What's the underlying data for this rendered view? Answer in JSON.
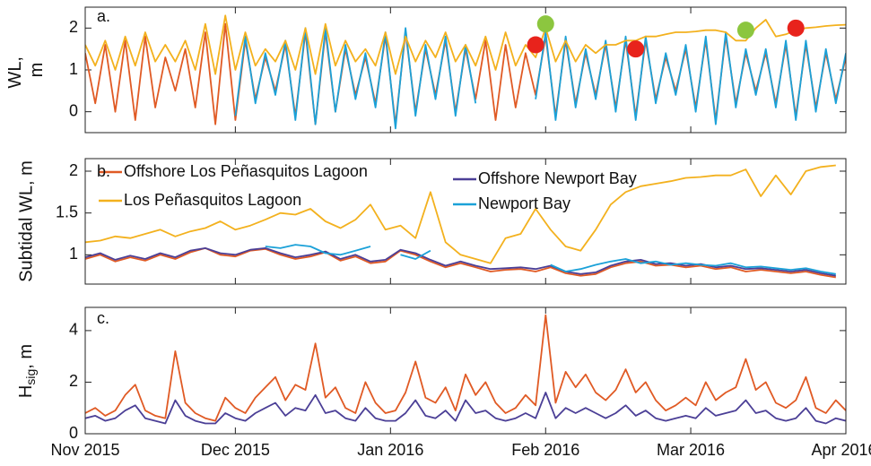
{
  "chart_data": [
    {
      "type": "line",
      "panel_label": "a.",
      "ylabel": [
        "WL,",
        "m"
      ],
      "xlim": [
        0,
        152
      ],
      "ylim": [
        -0.5,
        2.5
      ],
      "yticks": [
        0,
        1,
        2
      ],
      "x": [
        0,
        2,
        4,
        6,
        8,
        10,
        12,
        14,
        16,
        18,
        20,
        22,
        24,
        26,
        28,
        30,
        32,
        34,
        36,
        38,
        40,
        42,
        44,
        46,
        48,
        50,
        52,
        54,
        56,
        58,
        60,
        62,
        64,
        66,
        68,
        70,
        72,
        74,
        76,
        78,
        80,
        82,
        84,
        86,
        88,
        90,
        92,
        94,
        96,
        98,
        100,
        102,
        104,
        106,
        108,
        110,
        112,
        114,
        116,
        118,
        120,
        122,
        124,
        126,
        128,
        130,
        132,
        134,
        136,
        138,
        140,
        142,
        144,
        146,
        148,
        150,
        152
      ],
      "series": [
        {
          "color": "#e05a24",
          "values": [
            1.4,
            0.2,
            1.6,
            0.0,
            1.7,
            -0.2,
            1.8,
            0.1,
            1.3,
            0.5,
            1.5,
            0.1,
            1.9,
            -0.3,
            2.1,
            -0.2,
            1.7,
            0.3,
            1.3,
            0.5,
            1.6,
            -0.1,
            1.9,
            -0.3,
            1.9,
            0.0,
            1.5,
            0.4,
            1.3,
            0.2,
            1.8,
            -0.3,
            1.9,
            0.0,
            1.5,
            0.4,
            1.7,
            0.0,
            1.5,
            0.3,
            1.7,
            -0.2,
            1.6,
            0.1,
            1.4,
            0.4,
            1.8,
            -0.1,
            1.7,
            0.2,
            1.4,
            0.4,
            1.6,
            0.1,
            1.7,
            -0.1,
            1.7,
            0.3,
            1.3,
            0.5,
            1.5,
            0.1,
            1.7,
            -0.2,
            1.8,
            0.2,
            1.4,
            0.5,
            1.4,
            0.2,
            1.6,
            -0.1,
            1.6,
            0.1,
            1.4,
            0.3,
            1.3
          ]
        },
        {
          "color": "#1ba1d8",
          "values": [
            null,
            null,
            null,
            null,
            null,
            null,
            null,
            null,
            null,
            null,
            null,
            null,
            null,
            null,
            null,
            -0.1,
            1.8,
            0.2,
            1.4,
            0.4,
            1.7,
            -0.2,
            2.0,
            -0.3,
            2.0,
            0.0,
            1.6,
            0.3,
            1.4,
            0.1,
            1.9,
            -0.4,
            2.0,
            -0.1,
            1.6,
            0.3,
            1.8,
            -0.1,
            1.6,
            0.2,
            null,
            null,
            null,
            null,
            null,
            0.3,
            1.9,
            -0.2,
            1.8,
            0.1,
            1.5,
            0.3,
            1.7,
            0.0,
            1.8,
            -0.2,
            1.8,
            0.2,
            1.4,
            0.4,
            1.6,
            0.0,
            1.8,
            -0.3,
            1.9,
            0.1,
            1.5,
            0.4,
            1.5,
            0.1,
            1.7,
            -0.2,
            1.7,
            0.0,
            1.5,
            0.2,
            1.4
          ]
        },
        {
          "color": "#f3b11e",
          "values": [
            1.6,
            1.1,
            1.7,
            1.0,
            1.8,
            1.1,
            1.9,
            1.2,
            1.6,
            1.2,
            1.7,
            1.0,
            2.1,
            0.9,
            2.3,
            1.0,
            1.9,
            1.1,
            1.5,
            1.2,
            1.7,
            1.0,
            2.0,
            0.9,
            2.1,
            1.1,
            1.7,
            1.2,
            1.5,
            1.1,
            1.9,
            0.9,
            1.8,
            1.2,
            1.7,
            1.3,
            1.9,
            1.2,
            1.6,
            1.1,
            1.8,
            1.0,
            1.9,
            1.1,
            1.6,
            1.3,
            2.0,
            1.2,
            1.7,
            1.2,
            1.6,
            1.4,
            1.6,
            1.6,
            1.7,
            1.7,
            1.8,
            1.8,
            1.85,
            1.9,
            1.9,
            1.92,
            1.95,
            1.95,
            1.9,
            1.7,
            1.7,
            2.0,
            2.2,
            1.8,
            1.85,
            1.95,
            2.0,
            2.02,
            2.05,
            2.07,
            2.08
          ]
        }
      ],
      "markers": [
        {
          "color": "#e8231c",
          "x": [
            90,
            110,
            142
          ],
          "values": [
            1.6,
            1.5,
            2.0
          ]
        },
        {
          "color": "#8cc63f",
          "x": [
            92,
            132
          ],
          "values": [
            2.1,
            1.95
          ]
        }
      ]
    },
    {
      "type": "line",
      "panel_label": "b.",
      "ylabel": "Subtidal WL, m",
      "xlim": [
        0,
        152
      ],
      "ylim": [
        0.65,
        2.15
      ],
      "yticks": [
        1,
        1.5,
        2
      ],
      "x": [
        0,
        3,
        6,
        9,
        12,
        15,
        18,
        21,
        24,
        27,
        30,
        33,
        36,
        39,
        42,
        45,
        48,
        51,
        54,
        57,
        60,
        63,
        66,
        69,
        72,
        75,
        78,
        81,
        84,
        87,
        90,
        93,
        96,
        99,
        102,
        105,
        108,
        111,
        114,
        117,
        120,
        123,
        126,
        129,
        132,
        135,
        138,
        141,
        144,
        147,
        150
      ],
      "series": [
        {
          "name": "Offshore Los Peñasquitos Lagoon",
          "color": "#e05a24",
          "values": [
            0.95,
            1.0,
            0.92,
            0.97,
            0.93,
            1.0,
            0.95,
            1.03,
            1.08,
            1.0,
            0.98,
            1.05,
            1.07,
            1.0,
            0.95,
            0.98,
            1.03,
            0.93,
            0.98,
            0.9,
            0.92,
            1.05,
            1.0,
            0.92,
            0.85,
            0.9,
            0.85,
            0.8,
            0.82,
            0.83,
            0.8,
            0.85,
            0.78,
            0.75,
            0.77,
            0.85,
            0.9,
            0.92,
            0.87,
            0.88,
            0.85,
            0.87,
            0.83,
            0.85,
            0.8,
            0.82,
            0.8,
            0.78,
            0.8,
            0.76,
            0.73
          ]
        },
        {
          "name": "Los Peñasquitos Lagoon",
          "color": "#f3b11e",
          "values": [
            1.15,
            1.17,
            1.22,
            1.2,
            1.25,
            1.3,
            1.22,
            1.28,
            1.32,
            1.4,
            1.3,
            1.35,
            1.42,
            1.5,
            1.48,
            1.55,
            1.4,
            1.32,
            1.42,
            1.6,
            1.3,
            1.35,
            1.2,
            1.75,
            1.15,
            1.0,
            0.95,
            0.9,
            1.2,
            1.25,
            1.55,
            1.3,
            1.1,
            1.05,
            1.3,
            1.6,
            1.75,
            1.82,
            1.85,
            1.88,
            1.92,
            1.93,
            1.95,
            1.95,
            2.02,
            1.7,
            1.95,
            1.72,
            2.0,
            2.05,
            2.07
          ]
        },
        {
          "name": "Offshore Newport Bay",
          "color": "#4b3f96",
          "values": [
            0.97,
            1.02,
            0.94,
            0.99,
            0.95,
            1.02,
            0.97,
            1.05,
            1.08,
            1.02,
            1.0,
            1.06,
            1.08,
            1.02,
            0.97,
            1.0,
            1.04,
            0.95,
            1.0,
            0.92,
            0.94,
            1.06,
            1.02,
            0.94,
            0.87,
            0.92,
            0.87,
            0.83,
            0.84,
            0.85,
            0.83,
            0.87,
            0.8,
            0.77,
            0.79,
            0.87,
            0.92,
            0.94,
            0.89,
            0.9,
            0.87,
            0.89,
            0.85,
            0.87,
            0.83,
            0.84,
            0.82,
            0.8,
            0.82,
            0.78,
            0.75
          ]
        },
        {
          "name": "Newport Bay",
          "color": "#1ba1d8",
          "values": [
            null,
            null,
            null,
            null,
            null,
            null,
            null,
            null,
            null,
            null,
            null,
            null,
            1.1,
            1.08,
            1.12,
            1.1,
            1.02,
            1.0,
            1.05,
            1.1,
            null,
            1.0,
            0.95,
            1.05,
            null,
            null,
            null,
            null,
            null,
            null,
            null,
            0.88,
            0.8,
            0.83,
            0.88,
            0.92,
            0.95,
            0.9,
            0.92,
            0.88,
            0.9,
            0.88,
            0.87,
            0.9,
            0.85,
            0.86,
            0.84,
            0.82,
            0.84,
            0.8,
            0.77
          ]
        }
      ]
    },
    {
      "type": "line",
      "panel_label": "c.",
      "ylabel": {
        "main": "H",
        "sub": "sig",
        "rest": ", m"
      },
      "xlim": [
        0,
        152
      ],
      "ylim": [
        0,
        4.9
      ],
      "yticks": [
        0,
        2,
        4
      ],
      "xticks": [
        {
          "value": 0,
          "label": "Nov 2015"
        },
        {
          "value": 30,
          "label": "Dec 2015"
        },
        {
          "value": 61,
          "label": "Jan 2016"
        },
        {
          "value": 92,
          "label": "Feb 2016"
        },
        {
          "value": 121,
          "label": "Mar 2016"
        },
        {
          "value": 152,
          "label": "Apr 2016"
        }
      ],
      "x": [
        0,
        2,
        4,
        6,
        8,
        10,
        12,
        14,
        16,
        18,
        20,
        22,
        24,
        26,
        28,
        30,
        32,
        34,
        36,
        38,
        40,
        42,
        44,
        46,
        48,
        50,
        52,
        54,
        56,
        58,
        60,
        62,
        64,
        66,
        68,
        70,
        72,
        74,
        76,
        78,
        80,
        82,
        84,
        86,
        88,
        90,
        92,
        94,
        96,
        98,
        100,
        102,
        104,
        106,
        108,
        110,
        112,
        114,
        116,
        118,
        120,
        122,
        124,
        126,
        128,
        130,
        132,
        134,
        136,
        138,
        140,
        142,
        144,
        146,
        148,
        150,
        152
      ],
      "series": [
        {
          "color": "#e05a24",
          "values": [
            0.8,
            1.0,
            0.7,
            0.9,
            1.5,
            1.9,
            0.9,
            0.7,
            0.6,
            3.2,
            1.2,
            0.8,
            0.6,
            0.5,
            1.4,
            1.0,
            0.8,
            1.4,
            1.8,
            2.2,
            1.3,
            1.9,
            1.7,
            3.5,
            1.4,
            1.8,
            1.0,
            0.8,
            2.0,
            1.2,
            0.8,
            0.9,
            1.6,
            2.8,
            1.4,
            1.2,
            1.8,
            0.9,
            2.3,
            1.5,
            2.0,
            1.2,
            0.8,
            1.0,
            1.5,
            1.1,
            4.6,
            1.2,
            2.4,
            1.8,
            2.3,
            1.6,
            1.3,
            1.7,
            2.5,
            1.6,
            2.0,
            1.3,
            0.9,
            1.1,
            1.4,
            1.1,
            2.0,
            1.3,
            1.6,
            1.8,
            2.9,
            1.7,
            2.0,
            1.2,
            1.0,
            1.3,
            2.2,
            1.0,
            0.8,
            1.3,
            0.9
          ]
        },
        {
          "color": "#4b3f96",
          "values": [
            0.6,
            0.7,
            0.5,
            0.6,
            0.9,
            1.1,
            0.6,
            0.5,
            0.4,
            1.3,
            0.7,
            0.5,
            0.4,
            0.4,
            0.8,
            0.6,
            0.5,
            0.8,
            1.0,
            1.2,
            0.7,
            1.0,
            0.9,
            1.5,
            0.8,
            0.9,
            0.6,
            0.5,
            1.0,
            0.6,
            0.5,
            0.5,
            0.8,
            1.3,
            0.7,
            0.6,
            0.9,
            0.5,
            1.3,
            0.8,
            0.9,
            0.6,
            0.5,
            0.6,
            0.8,
            0.6,
            1.6,
            0.6,
            1.0,
            0.8,
            1.0,
            0.8,
            0.6,
            0.8,
            1.1,
            0.7,
            0.9,
            0.6,
            0.5,
            0.6,
            0.7,
            0.6,
            1.0,
            0.7,
            0.8,
            0.9,
            1.3,
            0.8,
            0.9,
            0.6,
            0.5,
            0.6,
            1.0,
            0.5,
            0.4,
            0.6,
            0.5
          ]
        }
      ]
    }
  ]
}
